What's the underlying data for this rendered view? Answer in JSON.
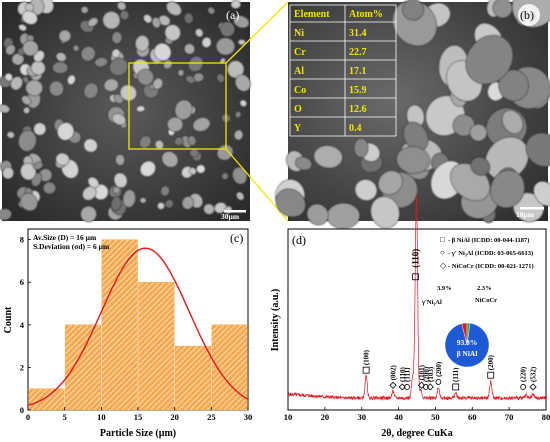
{
  "panel_a": {
    "label": "(a)",
    "scale_bar": "30µm"
  },
  "panel_b": {
    "label": "(b)",
    "scale_bar": "10µm",
    "table": {
      "headers": [
        "Element",
        "Atom%"
      ],
      "rows": [
        [
          "Ni",
          "31.4"
        ],
        [
          "Cr",
          "22.7"
        ],
        [
          "Al",
          "17.1"
        ],
        [
          "Co",
          "15.9"
        ],
        [
          "O",
          "12.6"
        ],
        [
          "Y",
          "0.4"
        ]
      ]
    }
  },
  "chart_data": [
    {
      "type": "bar",
      "panel_label": "(c)",
      "xlabel": "Particle Size (µm)",
      "ylabel": "Count",
      "annotations": [
        "Av.Size (D) = 16 µm",
        "S.Deviation (σd) = 6 µm"
      ],
      "x_ticks": [
        0,
        5,
        10,
        15,
        20,
        25,
        30
      ],
      "y_ticks": [
        0,
        2,
        4,
        6,
        8
      ],
      "xlim": [
        0,
        30
      ],
      "ylim": [
        0,
        8.5
      ],
      "bins": [
        {
          "start": 0,
          "end": 5,
          "count": 1
        },
        {
          "start": 5,
          "end": 10,
          "count": 4
        },
        {
          "start": 10,
          "end": 15,
          "count": 8
        },
        {
          "start": 15,
          "end": 20,
          "count": 6
        },
        {
          "start": 20,
          "end": 25,
          "count": 3
        },
        {
          "start": 25,
          "end": 30,
          "count": 4
        }
      ],
      "fit": {
        "type": "normal",
        "mean": 16,
        "sd": 6,
        "peak": 7.6
      },
      "colors": {
        "bar": "#f6a94f",
        "fit": "#e8161d"
      }
    },
    {
      "type": "line",
      "panel_label": "(d)",
      "xlabel": "2θ, degree CuKa",
      "ylabel": "Intensity (a.u.)",
      "x_ticks": [
        10,
        20,
        30,
        40,
        50,
        60,
        70,
        80
      ],
      "xlim": [
        10,
        80
      ],
      "legend": [
        {
          "symbol": "□",
          "text": "- β NiAl   (ICDD: 00-044-1187)"
        },
        {
          "symbol": "○",
          "text": "- γ' Ni₃Al  (ICDD: 03-065-6613)"
        },
        {
          "symbol": "◇",
          "text": "- NiCoCr  (ICDD: 00-021-1271)"
        }
      ],
      "peaks": [
        {
          "x": 31.2,
          "h": 0.13
        },
        {
          "x": 38.5,
          "h": 0.04
        },
        {
          "x": 43.8,
          "h": 0.12
        },
        {
          "x": 44.6,
          "h": 0.32
        },
        {
          "x": 44.9,
          "h": 1.0
        },
        {
          "x": 46.0,
          "h": 0.05
        },
        {
          "x": 50.8,
          "h": 0.06
        },
        {
          "x": 55.5,
          "h": 0.03
        },
        {
          "x": 65.0,
          "h": 0.1
        },
        {
          "x": 74.6,
          "h": 0.02
        },
        {
          "x": 76.5,
          "h": 0.02
        }
      ],
      "peak_labels": [
        {
          "x": 31.2,
          "text": "(100)",
          "marker": "square"
        },
        {
          "x": 38.5,
          "text": "(002)",
          "marker": "diamond"
        },
        {
          "x": 41.0,
          "text": "(110)",
          "marker": "diamond"
        },
        {
          "x": 42.3,
          "text": "(111)",
          "marker": "circle"
        },
        {
          "x": 44.6,
          "text": "(110)",
          "marker": "square"
        },
        {
          "x": 46.2,
          "text": "(101)",
          "marker": "diamond"
        },
        {
          "x": 47.4,
          "text": "(200)",
          "marker": "circle"
        },
        {
          "x": 48.6,
          "text": "(103)",
          "marker": "diamond"
        },
        {
          "x": 50.8,
          "text": "(200)",
          "marker": "circle"
        },
        {
          "x": 55.5,
          "text": "(111)",
          "marker": "square"
        },
        {
          "x": 65.0,
          "text": "(200)",
          "marker": "square"
        },
        {
          "x": 73.8,
          "text": "(220)",
          "marker": "circle"
        },
        {
          "x": 76.5,
          "text": "(532)",
          "marker": "diamond"
        }
      ],
      "pie": {
        "slices": [
          {
            "label": "β NiAl",
            "value": 93.8,
            "display": "93.8%",
            "color": "#1f5ad6"
          },
          {
            "label": "γ'Ni₃Al",
            "value": 3.9,
            "display": "3.9%",
            "color": "#e41a1c"
          },
          {
            "label": "NiCoCr",
            "value": 2.3,
            "display": "2.3%",
            "color": "#22b14c"
          }
        ]
      },
      "colors": {
        "line": "#e8161d"
      }
    }
  ]
}
